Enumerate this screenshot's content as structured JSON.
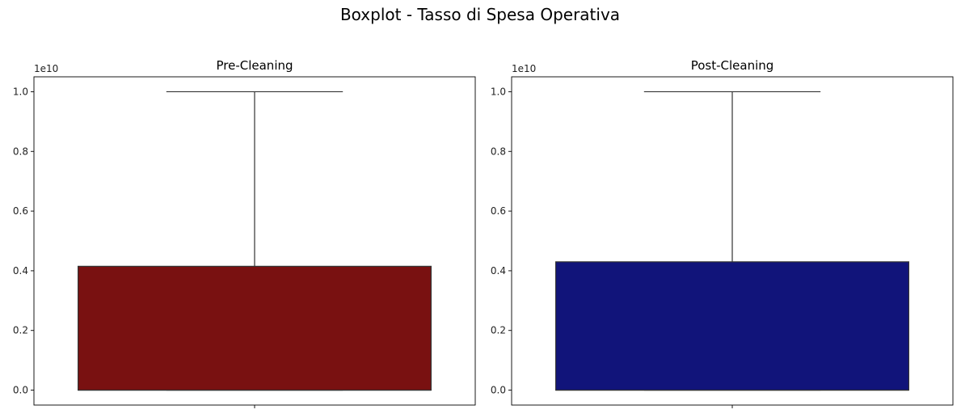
{
  "figure": {
    "title": "Boxplot - Tasso di Spesa Operativa"
  },
  "chart_data": [
    {
      "type": "boxplot",
      "title": "Pre-Cleaning",
      "offset_label": "1e10",
      "ylim": [
        -0.05,
        1.05
      ],
      "yticks": [
        0.0,
        0.2,
        0.4,
        0.6,
        0.8,
        1.0
      ],
      "ytick_labels": [
        "0.0",
        "0.2",
        "0.4",
        "0.6",
        "0.8",
        "1.0"
      ],
      "box": {
        "whisker_low": 0.0,
        "q1": 0.0,
        "median": 0.0,
        "q3": 0.415,
        "whisker_high": 1.0
      },
      "color": "#791111",
      "grid": false
    },
    {
      "type": "boxplot",
      "title": "Post-Cleaning",
      "offset_label": "1e10",
      "ylim": [
        -0.05,
        1.05
      ],
      "yticks": [
        0.0,
        0.2,
        0.4,
        0.6,
        0.8,
        1.0
      ],
      "ytick_labels": [
        "0.0",
        "0.2",
        "0.4",
        "0.6",
        "0.8",
        "1.0"
      ],
      "box": {
        "whisker_low": 0.0,
        "q1": 0.0,
        "median": 0.0,
        "q3": 0.43,
        "whisker_high": 1.0
      },
      "color": "#11147a",
      "grid": false
    }
  ]
}
